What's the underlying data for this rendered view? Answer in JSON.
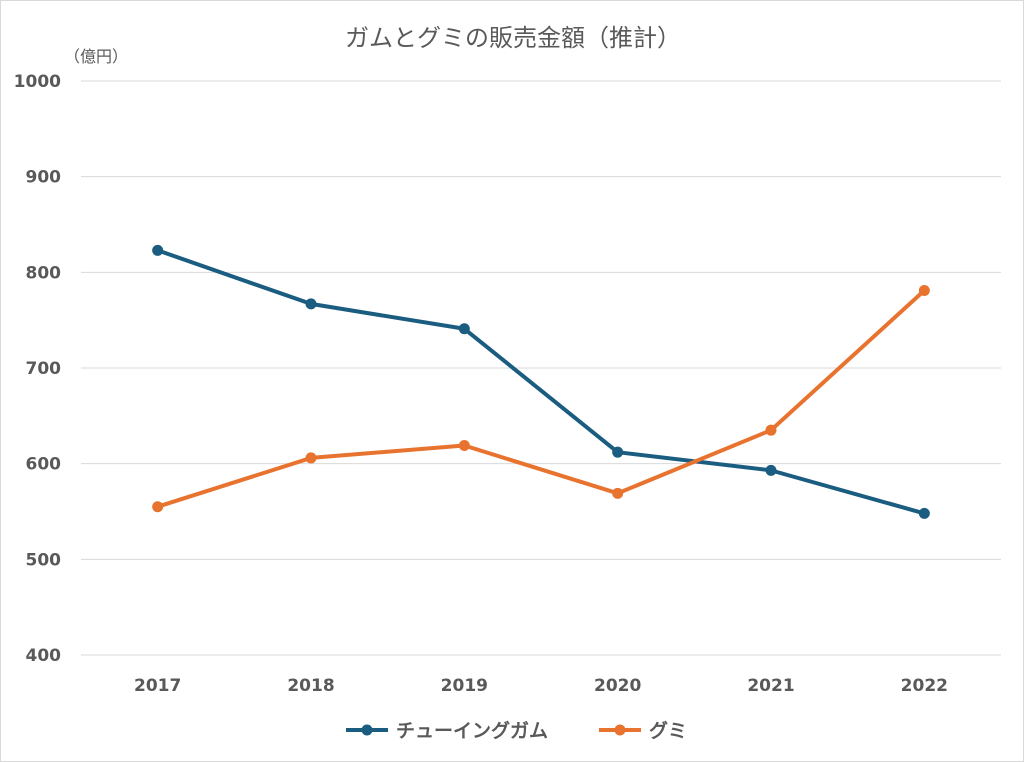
{
  "chart_data": {
    "type": "line",
    "title": "ガムとグミの販売金額（推計）",
    "unit_label": "（億円）",
    "categories": [
      "2017",
      "2018",
      "2019",
      "2020",
      "2021",
      "2022"
    ],
    "y_ticks": [
      "1000",
      "900",
      "800",
      "700",
      "600",
      "500",
      "400"
    ],
    "ylim": [
      400,
      1000
    ],
    "grid": true,
    "legend_position": "bottom",
    "series": [
      {
        "name": "チューイングガム",
        "color": "#1b5d80",
        "values": [
          823,
          767,
          741,
          612,
          593,
          548
        ]
      },
      {
        "name": "グミ",
        "color": "#e8732f",
        "values": [
          555,
          606,
          619,
          569,
          635,
          781
        ]
      }
    ]
  }
}
